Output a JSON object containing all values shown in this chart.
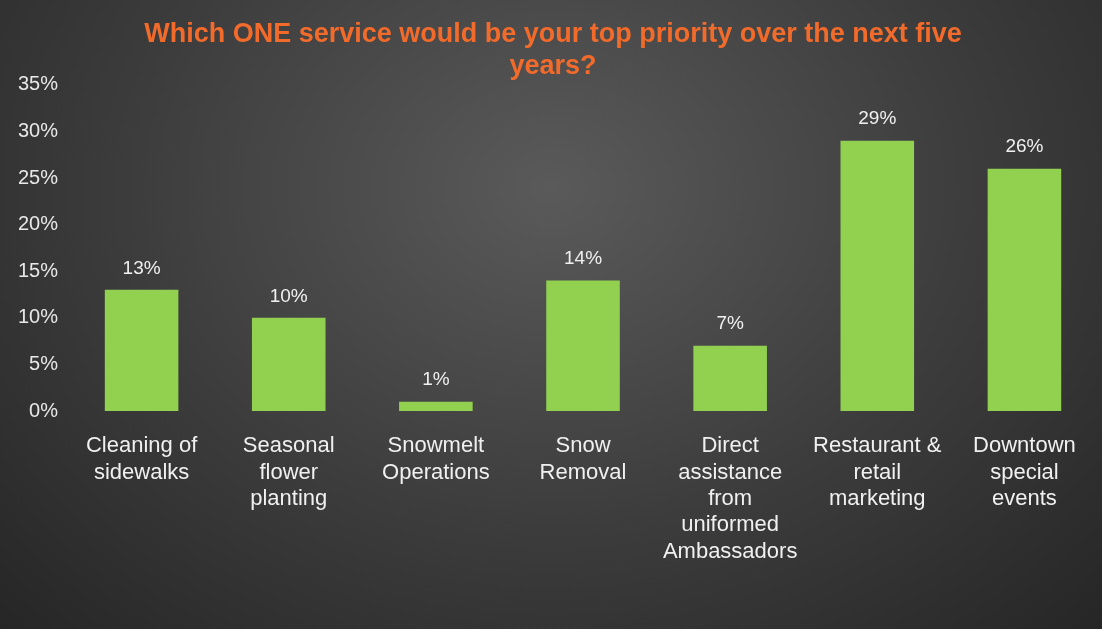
{
  "chart_data": {
    "type": "bar",
    "title": "Which ONE service would be your top priority over the next five years?",
    "categories": [
      "Cleaning of sidewalks",
      "Seasonal flower planting",
      "Snowmelt Operations",
      "Snow Removal",
      "Direct assistance from uniformed Ambassadors",
      "Restaurant & retail marketing",
      "Downtown special events"
    ],
    "values": [
      13,
      10,
      1,
      14,
      7,
      29,
      26
    ],
    "color": "#92d050",
    "ylim": [
      0,
      35
    ],
    "yticks": [
      {
        "value": 0,
        "label": "0%"
      },
      {
        "value": 5,
        "label": "5%"
      },
      {
        "value": 10,
        "label": "10%"
      },
      {
        "value": 15,
        "label": "15%"
      },
      {
        "value": 20,
        "label": "20%"
      },
      {
        "value": 25,
        "label": "25%"
      },
      {
        "value": 30,
        "label": "30%"
      },
      {
        "value": 35,
        "label": "35%"
      }
    ],
    "value_labels": [
      "13%",
      "10%",
      "1%",
      "14%",
      "7%",
      "29%",
      "26%"
    ],
    "grid": false,
    "legend": false
  }
}
